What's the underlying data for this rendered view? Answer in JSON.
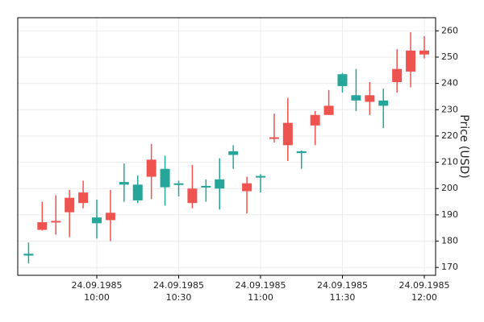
{
  "chart_data": {
    "type": "candlestick",
    "title": "",
    "xlabel": "",
    "ylabel": "Price (USD)",
    "ylim": [
      167,
      265
    ],
    "grid": true,
    "legend": "none",
    "colors": {
      "up": "#26a69a",
      "down": "#ef5350"
    },
    "x_ticks": [
      {
        "date": "24.09.1985",
        "time": "10:00"
      },
      {
        "date": "24.09.1985",
        "time": "10:30"
      },
      {
        "date": "24.09.1985",
        "time": "11:00"
      },
      {
        "date": "24.09.1985",
        "time": "11:30"
      },
      {
        "date": "24.09.1985",
        "time": "12:00"
      }
    ],
    "y_ticks": [
      170,
      180,
      190,
      200,
      210,
      220,
      230,
      240,
      250,
      260
    ],
    "candles": [
      {
        "time": "09:35",
        "open": 174.5,
        "high": 179.5,
        "low": 171.5,
        "close": 175.2
      },
      {
        "time": "09:40",
        "open": 187.2,
        "high": 195.0,
        "low": 184.0,
        "close": 184.3
      },
      {
        "time": "09:45",
        "open": 187.7,
        "high": 197.5,
        "low": 182.5,
        "close": 187.5
      },
      {
        "time": "09:50",
        "open": 196.5,
        "high": 199.5,
        "low": 181.5,
        "close": 191.0
      },
      {
        "time": "09:55",
        "open": 198.5,
        "high": 203.0,
        "low": 192.5,
        "close": 194.5
      },
      {
        "time": "10:00",
        "open": 186.8,
        "high": 195.8,
        "low": 181.0,
        "close": 189.0
      },
      {
        "time": "10:05",
        "open": 190.8,
        "high": 199.5,
        "low": 180.0,
        "close": 188.0
      },
      {
        "time": "10:10",
        "open": 201.5,
        "high": 209.5,
        "low": 195.0,
        "close": 202.5
      },
      {
        "time": "10:15",
        "open": 195.5,
        "high": 205.0,
        "low": 194.5,
        "close": 201.5
      },
      {
        "time": "10:20",
        "open": 211.0,
        "high": 217.0,
        "low": 196.0,
        "close": 204.5
      },
      {
        "time": "10:25",
        "open": 200.5,
        "high": 212.5,
        "low": 193.5,
        "close": 207.5
      },
      {
        "time": "10:30",
        "open": 201.5,
        "high": 203.0,
        "low": 197.0,
        "close": 202.0
      },
      {
        "time": "10:35",
        "open": 200.0,
        "high": 209.0,
        "low": 192.5,
        "close": 194.5
      },
      {
        "time": "10:40",
        "open": 200.8,
        "high": 203.5,
        "low": 195.0,
        "close": 201.0
      },
      {
        "time": "10:45",
        "open": 200.0,
        "high": 211.5,
        "low": 192.0,
        "close": 203.5
      },
      {
        "time": "10:50",
        "open": 212.8,
        "high": 216.5,
        "low": 207.5,
        "close": 214.2
      },
      {
        "time": "10:55",
        "open": 202.0,
        "high": 204.5,
        "low": 190.5,
        "close": 199.0
      },
      {
        "time": "11:00",
        "open": 204.5,
        "high": 205.5,
        "low": 198.5,
        "close": 204.8
      },
      {
        "time": "11:05",
        "open": 219.5,
        "high": 228.5,
        "low": 217.5,
        "close": 219.2
      },
      {
        "time": "11:10",
        "open": 225.0,
        "high": 234.5,
        "low": 210.5,
        "close": 216.5
      },
      {
        "time": "11:15",
        "open": 213.5,
        "high": 214.5,
        "low": 207.5,
        "close": 214.2
      },
      {
        "time": "11:20",
        "open": 228.0,
        "high": 229.5,
        "low": 216.5,
        "close": 224.0
      },
      {
        "time": "11:25",
        "open": 231.5,
        "high": 237.5,
        "low": 228.0,
        "close": 228.0
      },
      {
        "time": "11:30",
        "open": 239.0,
        "high": 244.0,
        "low": 236.5,
        "close": 243.5
      },
      {
        "time": "11:35",
        "open": 233.5,
        "high": 245.5,
        "low": 229.5,
        "close": 235.5
      },
      {
        "time": "11:40",
        "open": 235.5,
        "high": 240.5,
        "low": 228.0,
        "close": 233.0
      },
      {
        "time": "11:45",
        "open": 231.5,
        "high": 238.0,
        "low": 223.0,
        "close": 233.5
      },
      {
        "time": "11:50",
        "open": 245.5,
        "high": 253.0,
        "low": 236.5,
        "close": 240.5
      },
      {
        "time": "11:55",
        "open": 252.5,
        "high": 259.5,
        "low": 238.5,
        "close": 244.5
      },
      {
        "time": "12:00",
        "open": 252.5,
        "high": 258.0,
        "low": 249.5,
        "close": 251.0
      }
    ]
  }
}
